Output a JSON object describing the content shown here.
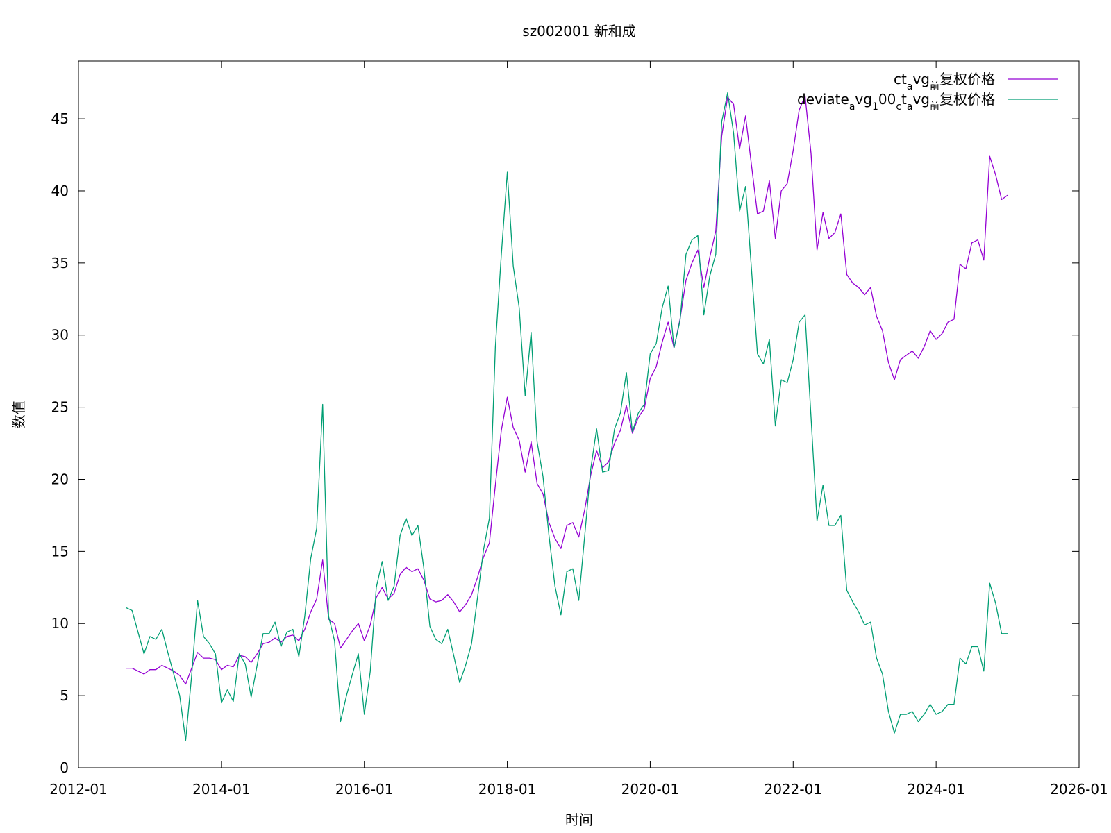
{
  "chart_data": {
    "type": "line",
    "title": "sz002001 新和成",
    "xlabel": "时间",
    "ylabel": "数值",
    "xlim": [
      "2012-01",
      "2026-01"
    ],
    "ylim": [
      0,
      49
    ],
    "x_ticks": [
      "2012-01",
      "2014-01",
      "2016-01",
      "2018-01",
      "2020-01",
      "2022-01",
      "2024-01",
      "2026-01"
    ],
    "y_ticks": [
      0,
      5,
      10,
      15,
      20,
      25,
      30,
      35,
      40,
      45
    ],
    "legend_position": "top-right",
    "grid": false,
    "x": [
      "2012-09",
      "2012-10",
      "2012-11",
      "2012-12",
      "2013-01",
      "2013-02",
      "2013-03",
      "2013-04",
      "2013-05",
      "2013-06",
      "2013-07",
      "2013-08",
      "2013-09",
      "2013-10",
      "2013-11",
      "2013-12",
      "2014-01",
      "2014-02",
      "2014-03",
      "2014-04",
      "2014-05",
      "2014-06",
      "2014-07",
      "2014-08",
      "2014-09",
      "2014-10",
      "2014-11",
      "2014-12",
      "2015-01",
      "2015-02",
      "2015-03",
      "2015-04",
      "2015-05",
      "2015-06",
      "2015-07",
      "2015-08",
      "2015-09",
      "2015-10",
      "2015-11",
      "2015-12",
      "2016-01",
      "2016-02",
      "2016-03",
      "2016-04",
      "2016-05",
      "2016-06",
      "2016-07",
      "2016-08",
      "2016-09",
      "2016-10",
      "2016-11",
      "2016-12",
      "2017-01",
      "2017-02",
      "2017-03",
      "2017-04",
      "2017-05",
      "2017-06",
      "2017-07",
      "2017-08",
      "2017-09",
      "2017-10",
      "2017-11",
      "2017-12",
      "2018-01",
      "2018-02",
      "2018-03",
      "2018-04",
      "2018-05",
      "2018-06",
      "2018-07",
      "2018-08",
      "2018-09",
      "2018-10",
      "2018-11",
      "2018-12",
      "2019-01",
      "2019-02",
      "2019-03",
      "2019-04",
      "2019-05",
      "2019-06",
      "2019-07",
      "2019-08",
      "2019-09",
      "2019-10",
      "2019-11",
      "2019-12",
      "2020-01",
      "2020-02",
      "2020-03",
      "2020-04",
      "2020-05",
      "2020-06",
      "2020-07",
      "2020-08",
      "2020-09",
      "2020-10",
      "2020-11",
      "2020-12",
      "2021-01",
      "2021-02",
      "2021-03",
      "2021-04",
      "2021-05",
      "2021-06",
      "2021-07",
      "2021-08",
      "2021-09",
      "2021-10",
      "2021-11",
      "2021-12",
      "2022-01",
      "2022-02",
      "2022-03",
      "2022-04",
      "2022-05",
      "2022-06",
      "2022-07",
      "2022-08",
      "2022-09",
      "2022-10",
      "2022-11",
      "2022-12",
      "2023-01",
      "2023-02",
      "2023-03",
      "2023-04",
      "2023-05",
      "2023-06",
      "2023-07",
      "2023-08",
      "2023-09",
      "2023-10",
      "2023-11",
      "2023-12",
      "2024-01",
      "2024-02",
      "2024-03",
      "2024-04",
      "2024-05",
      "2024-06",
      "2024-07",
      "2024-08",
      "2024-09",
      "2024-10",
      "2024-11",
      "2024-12",
      "2025-01"
    ],
    "series": [
      {
        "name": "ct_avg_前复权价格",
        "color": "#9400d3",
        "values": [
          6.9,
          6.9,
          6.7,
          6.5,
          6.8,
          6.8,
          7.1,
          6.9,
          6.7,
          6.4,
          5.8,
          6.9,
          8.0,
          7.6,
          7.6,
          7.5,
          6.8,
          7.1,
          7.0,
          7.8,
          7.7,
          7.3,
          7.9,
          8.6,
          8.7,
          9.0,
          8.7,
          9.1,
          9.2,
          8.8,
          9.6,
          10.8,
          11.7,
          14.4,
          10.3,
          10.0,
          8.3,
          8.9,
          9.5,
          10.0,
          8.8,
          9.9,
          11.8,
          12.5,
          11.7,
          12.1,
          13.4,
          13.9,
          13.6,
          13.8,
          13.0,
          11.7,
          11.5,
          11.6,
          12.0,
          11.5,
          10.8,
          11.3,
          12.0,
          13.2,
          14.6,
          15.6,
          19.6,
          23.4,
          25.7,
          23.6,
          22.7,
          20.5,
          22.6,
          19.7,
          19.0,
          17.0,
          15.9,
          15.2,
          16.8,
          17.0,
          16.0,
          17.9,
          20.3,
          22.0,
          20.8,
          21.2,
          22.5,
          23.4,
          25.1,
          23.2,
          24.3,
          24.9,
          27.0,
          27.8,
          29.5,
          30.9,
          29.1,
          31.1,
          33.8,
          35.0,
          35.9,
          33.3,
          35.4,
          37.2,
          43.8,
          46.5,
          46.0,
          42.9,
          45.2,
          41.8,
          38.4,
          38.6,
          40.7,
          36.7,
          40.0,
          40.5,
          42.8,
          45.6,
          46.6,
          42.6,
          35.9,
          38.5,
          36.7,
          37.1,
          38.4,
          34.2,
          33.6,
          33.3,
          32.8,
          33.3,
          31.3,
          30.3,
          28.1,
          26.9,
          28.3,
          28.6,
          28.9,
          28.4,
          29.2,
          30.3,
          29.7,
          30.1,
          30.9,
          31.1,
          34.9,
          34.6,
          36.4,
          36.6,
          35.2,
          42.4,
          41.1,
          39.4,
          39.7
        ]
      },
      {
        "name": "deviate_avg_100_ct_avg_前复权价格",
        "color": "#009e73",
        "values": [
          11.1,
          10.9,
          9.4,
          7.9,
          9.1,
          8.9,
          9.6,
          8.0,
          6.5,
          5.0,
          1.9,
          6.4,
          11.6,
          9.1,
          8.6,
          7.9,
          4.5,
          5.4,
          4.6,
          7.9,
          7.2,
          4.9,
          7.1,
          9.3,
          9.3,
          10.1,
          8.4,
          9.4,
          9.6,
          7.7,
          10.5,
          14.5,
          16.6,
          25.2,
          10.5,
          8.8,
          3.2,
          5.0,
          6.5,
          7.9,
          3.7,
          6.7,
          12.5,
          14.3,
          11.6,
          12.6,
          16.1,
          17.3,
          16.1,
          16.8,
          13.8,
          9.8,
          8.9,
          8.6,
          9.6,
          7.8,
          5.9,
          7.1,
          8.6,
          11.8,
          15.1,
          17.3,
          29.2,
          35.6,
          41.3,
          34.8,
          31.9,
          25.8,
          30.2,
          22.6,
          20.2,
          16.1,
          12.6,
          10.6,
          13.6,
          13.8,
          11.6,
          16.1,
          20.7,
          23.5,
          20.5,
          20.6,
          23.5,
          24.6,
          27.4,
          23.3,
          24.6,
          25.2,
          28.7,
          29.4,
          31.9,
          33.4,
          29.1,
          31.0,
          35.6,
          36.6,
          36.9,
          31.4,
          34.1,
          35.6,
          44.8,
          46.8,
          44.0,
          38.6,
          40.3,
          34.6,
          28.7,
          28.0,
          29.7,
          23.7,
          26.9,
          26.7,
          28.3,
          30.9,
          31.4,
          24.3,
          17.1,
          19.6,
          16.8,
          16.8,
          17.5,
          12.3,
          11.5,
          10.8,
          9.9,
          10.1,
          7.6,
          6.5,
          3.9,
          2.4,
          3.7,
          3.7,
          3.9,
          3.2,
          3.7,
          4.4,
          3.7,
          3.9,
          4.4,
          4.4,
          7.6,
          7.2,
          8.4,
          8.4,
          6.7,
          12.8,
          11.4,
          9.3,
          9.3
        ]
      }
    ]
  }
}
